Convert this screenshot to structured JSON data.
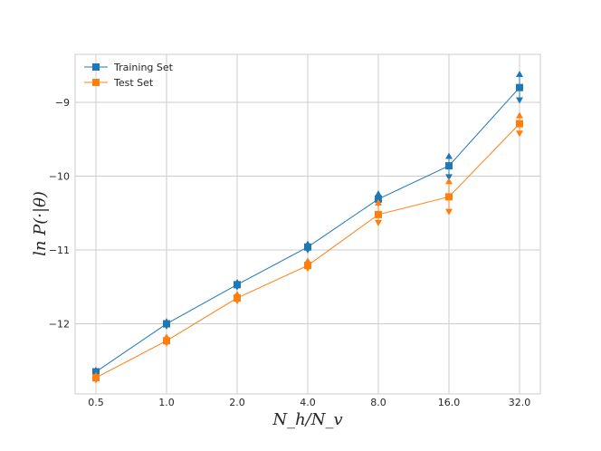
{
  "chart_data": {
    "type": "line",
    "title": "",
    "xlabel": "N_h/N_v",
    "ylabel": "ln P(·|θ)",
    "x_tick_labels": [
      "0.5",
      "1.0",
      "2.0",
      "4.0",
      "8.0",
      "16.0",
      "32.0"
    ],
    "y_ticks": [
      -12,
      -11,
      -10,
      -9
    ],
    "y_tick_labels": [
      "−12",
      "−11",
      "−10",
      "−9"
    ],
    "ylim": [
      -12.95,
      -8.35
    ],
    "grid": true,
    "legend_position": "top-left",
    "series": [
      {
        "name": "Training Set",
        "color": "#1f77b4",
        "marker": "square",
        "values": [
          -12.65,
          -12.0,
          -11.47,
          -10.96,
          -10.31,
          -9.86,
          -8.8
        ],
        "upper": [
          -12.63,
          -11.97,
          -11.44,
          -10.92,
          -10.24,
          -9.73,
          -8.62
        ],
        "lower": [
          -12.67,
          -12.03,
          -11.5,
          -11.0,
          -10.37,
          -10.01,
          -8.97
        ]
      },
      {
        "name": "Test Set",
        "color": "#ff7f0e",
        "marker": "square",
        "values": [
          -12.73,
          -12.23,
          -11.65,
          -11.21,
          -10.52,
          -10.28,
          -9.29
        ],
        "upper": [
          -12.7,
          -12.18,
          -11.6,
          -11.15,
          -10.36,
          -10.07,
          -9.18
        ],
        "lower": [
          -12.76,
          -12.26,
          -11.69,
          -11.25,
          -10.63,
          -10.48,
          -9.42
        ]
      }
    ]
  }
}
